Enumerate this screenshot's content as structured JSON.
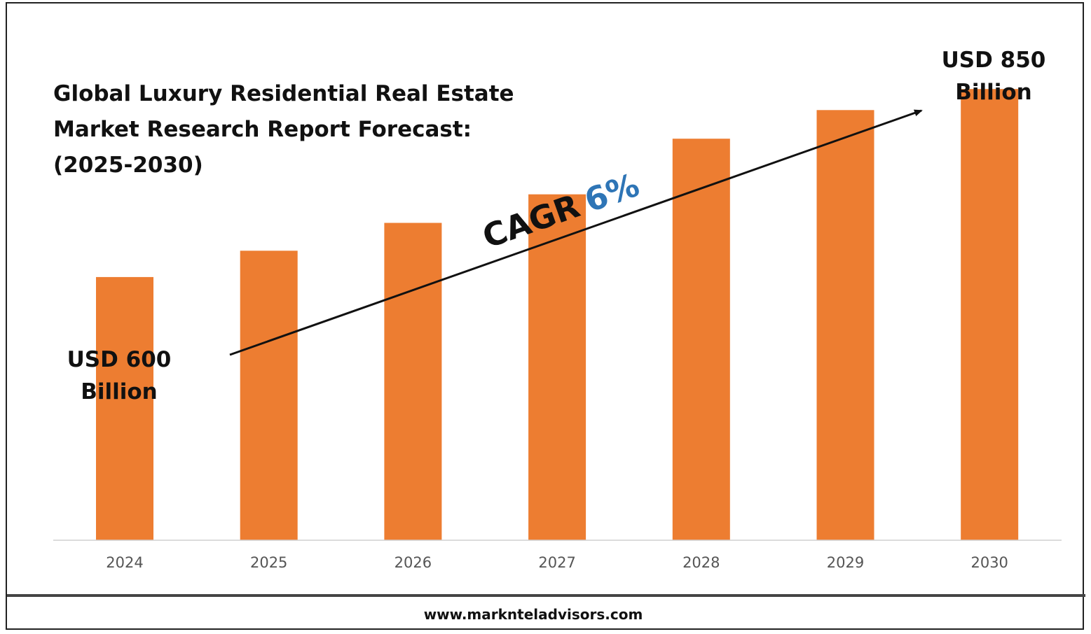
{
  "title": {
    "line1": "Global Luxury Residential Real Estate",
    "line2": "Market Research Report Forecast:",
    "line3": "(2025-2030)"
  },
  "annotations": {
    "start_value_line1": "USD 600",
    "start_value_line2": "Billion",
    "end_value_line1": "USD 850",
    "end_value_line2": "Billion",
    "cagr_label": "CAGR",
    "cagr_value": "6%"
  },
  "footer": {
    "url": "www.marknteladvisors.com"
  },
  "colors": {
    "bar": "#ED7D31",
    "cagr_value": "#2E75B6",
    "text": "#111111",
    "axis_label": "#555555"
  },
  "chart_data": {
    "type": "bar",
    "categories": [
      "2024",
      "2025",
      "2026",
      "2027",
      "2028",
      "2029",
      "2030"
    ],
    "values": [
      600,
      635,
      672,
      710,
      784,
      822,
      850
    ],
    "ylim": [
      250,
      880
    ],
    "grid": false,
    "legend": "none"
  }
}
